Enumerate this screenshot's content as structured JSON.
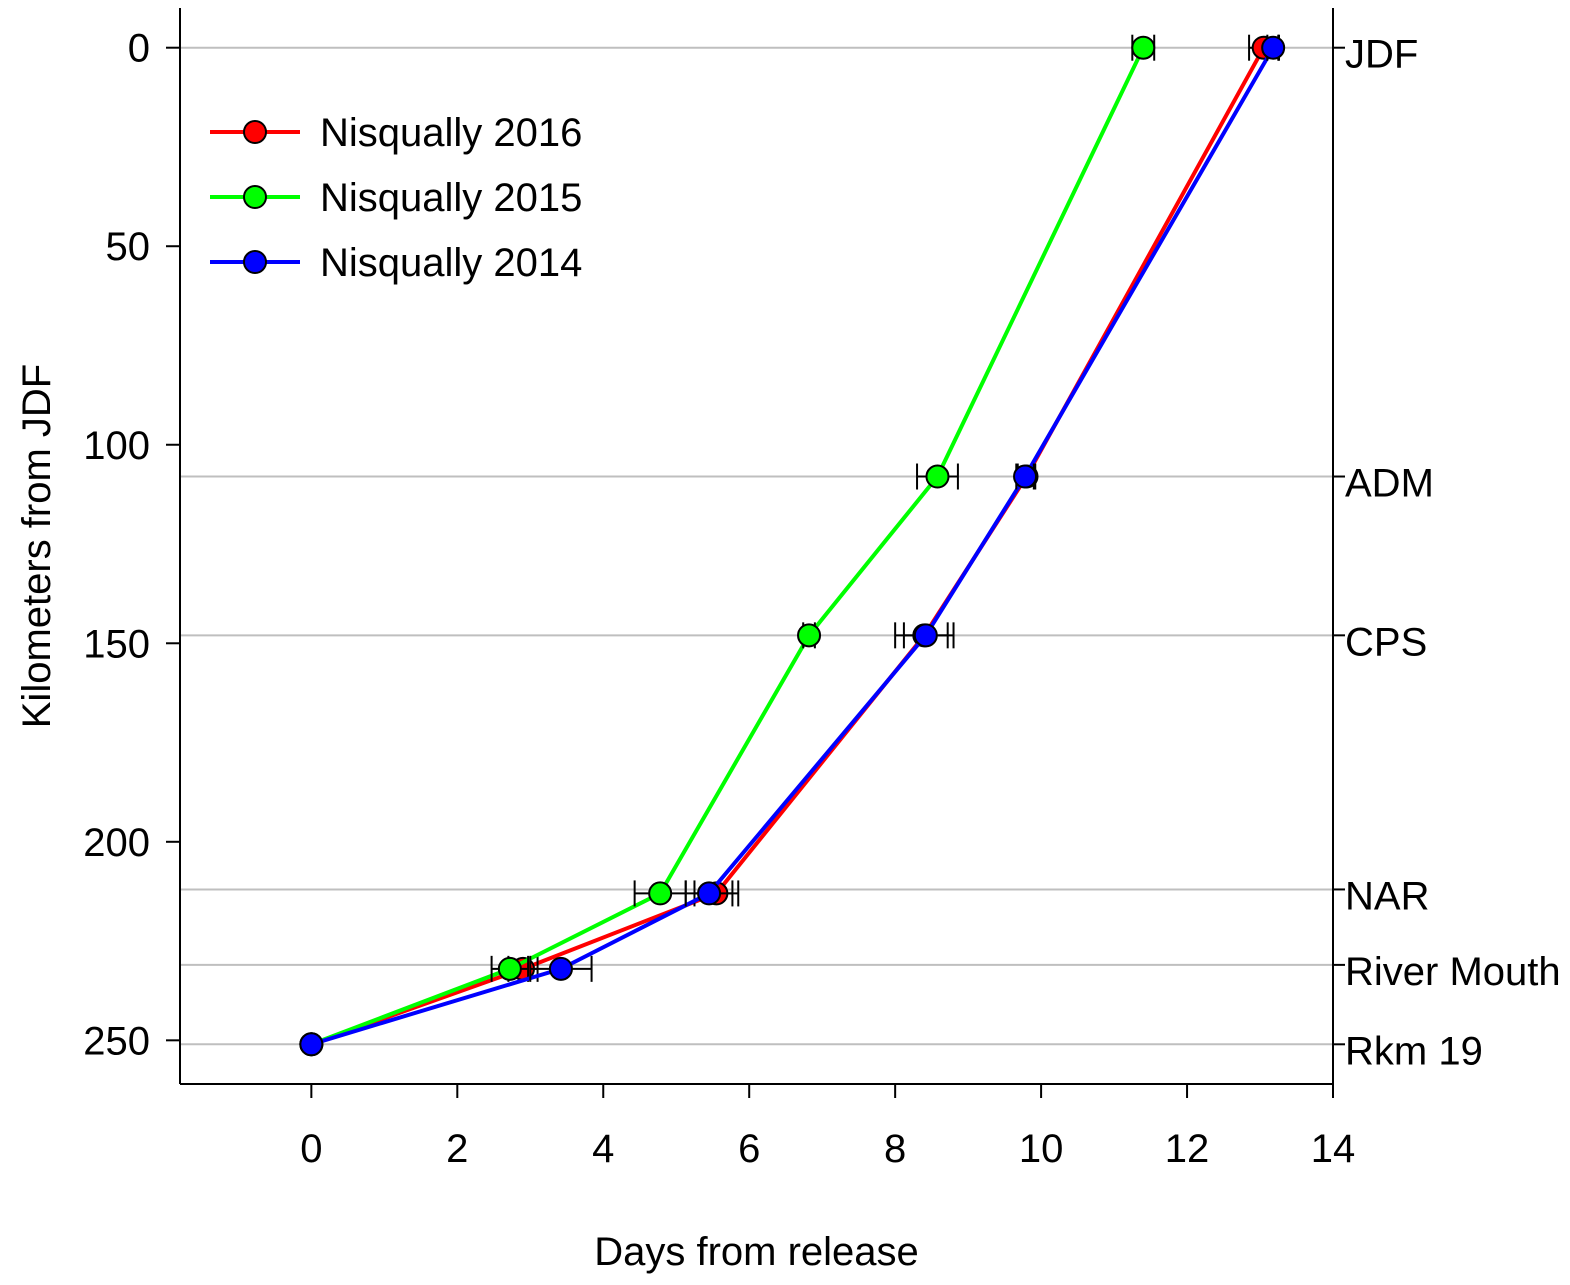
{
  "chart_data": {
    "type": "line",
    "xlabel": "Days from release",
    "ylabel": "Kilometers from JDF",
    "xlim": [
      -1.8,
      14
    ],
    "ylim": [
      261,
      -10
    ],
    "y_inverted": true,
    "xticks": [
      0,
      2,
      4,
      6,
      8,
      10,
      12,
      14
    ],
    "yticks": [
      0,
      50,
      100,
      150,
      200,
      250
    ],
    "grid": "horizontal lines at station positions",
    "legend_position": "top-left",
    "stations": [
      {
        "label": "JDF",
        "km": 0
      },
      {
        "label": "ADM",
        "km": 108
      },
      {
        "label": "CPS",
        "km": 148
      },
      {
        "label": "NAR",
        "km": 212
      },
      {
        "label": "River Mouth",
        "km": 231
      },
      {
        "label": "Rkm 19",
        "km": 251
      }
    ],
    "series": [
      {
        "name": "Nisqually 2016",
        "color": "#ff0000",
        "points": [
          {
            "x": 0.0,
            "y": 251,
            "err": 0
          },
          {
            "x": 2.9,
            "y": 232,
            "err": 0.2
          },
          {
            "x": 5.55,
            "y": 213,
            "err": 0.3
          },
          {
            "x": 8.4,
            "y": 148,
            "err": 0.4
          },
          {
            "x": 9.8,
            "y": 108,
            "err": 0.12
          },
          {
            "x": 13.05,
            "y": 0,
            "err": 0.2
          }
        ]
      },
      {
        "name": "Nisqually 2015",
        "color": "#00ff00",
        "points": [
          {
            "x": 0.0,
            "y": 251,
            "err": 0
          },
          {
            "x": 2.72,
            "y": 232,
            "err": 0.25
          },
          {
            "x": 4.78,
            "y": 213,
            "err": 0.35
          },
          {
            "x": 6.82,
            "y": 148,
            "err": 0.08
          },
          {
            "x": 8.58,
            "y": 108,
            "err": 0.28
          },
          {
            "x": 11.4,
            "y": 0,
            "err": 0.15
          }
        ]
      },
      {
        "name": "Nisqually 2014",
        "color": "#0000ff",
        "points": [
          {
            "x": 0.0,
            "y": 251,
            "err": 0
          },
          {
            "x": 3.42,
            "y": 232,
            "err": 0.42
          },
          {
            "x": 5.45,
            "y": 213,
            "err": 0.32
          },
          {
            "x": 8.42,
            "y": 148,
            "err": 0.3
          },
          {
            "x": 9.78,
            "y": 108,
            "err": 0.12
          },
          {
            "x": 13.18,
            "y": 0,
            "err": 0.08
          }
        ]
      }
    ]
  }
}
